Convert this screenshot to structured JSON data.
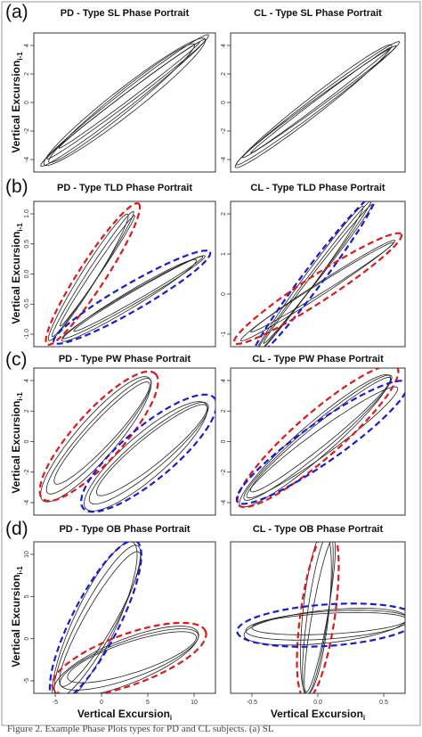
{
  "figure_caption": "Figure 2. Example Phase Plots types for PD and CL subjects. (a) SL",
  "shared_ylabel_main": "Vertical Excursion",
  "shared_ylabel_sub": "i-1",
  "shared_xlabel_main": "Vertical Excursion",
  "shared_xlabel_sub": "i",
  "colors": {
    "trace": "#222222",
    "red_ellipse": "#e01818",
    "blue_ellipse": "#1a1ad8",
    "frame": "#333333"
  },
  "chart_data": [
    {
      "type": "scatter",
      "panel_label": "(a)",
      "title": "PD - Type SL Phase Portrait",
      "xlim": [
        -6,
        6
      ],
      "ylim": [
        -6,
        4.5
      ],
      "yticks": [
        "-4",
        "-2",
        "0",
        "2",
        "4"
      ],
      "xticks": [],
      "traces": [
        {
          "cx": 0,
          "cy": -0.6,
          "rx": 7.5,
          "ry": 0.55,
          "angle": 38
        },
        {
          "cx": 0.1,
          "cy": -0.5,
          "rx": 7.0,
          "ry": 0.35,
          "angle": 37
        },
        {
          "cx": -0.2,
          "cy": -0.8,
          "rx": 6.6,
          "ry": 0.7,
          "angle": 39
        },
        {
          "cx": 0.3,
          "cy": -0.2,
          "rx": 6.2,
          "ry": 0.25,
          "angle": 37
        },
        {
          "cx": 0,
          "cy": -0.7,
          "rx": 7.2,
          "ry": 0.9,
          "angle": 38
        }
      ],
      "highlights": []
    },
    {
      "type": "scatter",
      "panel_label": "",
      "title": "CL - Type SL Phase Portrait",
      "xlim": [
        -6,
        6
      ],
      "ylim": [
        -5,
        4.5
      ],
      "yticks": [
        "-4",
        "-2",
        "0",
        "2",
        "4"
      ],
      "xticks": [],
      "traces": [
        {
          "cx": 0,
          "cy": -0.3,
          "rx": 7.0,
          "ry": 0.45,
          "angle": 37
        },
        {
          "cx": 0.1,
          "cy": -0.2,
          "rx": 6.5,
          "ry": 0.3,
          "angle": 36
        },
        {
          "cx": -0.3,
          "cy": -0.5,
          "rx": 6.8,
          "ry": 0.6,
          "angle": 38
        },
        {
          "cx": 0.2,
          "cy": -0.1,
          "rx": 6.0,
          "ry": 0.2,
          "angle": 37
        }
      ],
      "highlights": []
    },
    {
      "type": "scatter",
      "panel_label": "(b)",
      "title": "PD - Type TLD Phase Portrait",
      "xlim": [
        -1,
        1
      ],
      "ylim": [
        -1.1,
        1.1
      ],
      "yticks": [
        "-1.0",
        "-0.5",
        "0.0",
        "0.5",
        "1.0"
      ],
      "xticks": [],
      "traces": [
        {
          "cx": -0.35,
          "cy": 0.0,
          "rx": 0.95,
          "ry": 0.07,
          "angle": 57
        },
        {
          "cx": -0.3,
          "cy": 0.05,
          "rx": 0.85,
          "ry": 0.05,
          "angle": 56
        },
        {
          "cx": -0.4,
          "cy": -0.05,
          "rx": 0.95,
          "ry": 0.1,
          "angle": 58
        },
        {
          "cx": 0.1,
          "cy": -0.35,
          "rx": 1.05,
          "ry": 0.08,
          "angle": 30
        },
        {
          "cx": 0.15,
          "cy": -0.3,
          "rx": 0.95,
          "ry": 0.06,
          "angle": 30
        },
        {
          "cx": 0.05,
          "cy": -0.4,
          "rx": 1.0,
          "ry": 0.1,
          "angle": 31
        }
      ],
      "highlights": [
        {
          "color": "red",
          "cx": -0.35,
          "cy": 0.0,
          "rx": 1.07,
          "ry": 0.17,
          "angle": 57
        },
        {
          "color": "blue",
          "cx": 0.08,
          "cy": -0.35,
          "rx": 1.15,
          "ry": 0.17,
          "angle": 30
        }
      ]
    },
    {
      "type": "scatter",
      "panel_label": "",
      "title": "CL - Type TLD Phase Portrait",
      "xlim": [
        -1,
        1
      ],
      "ylim": [
        -1.1,
        1.1
      ],
      "yticks": [
        "-1",
        "0",
        "1",
        "2"
      ],
      "xticks": [],
      "traces": [
        {
          "cx": -0.05,
          "cy": -0.05,
          "rx": 1.25,
          "ry": 0.06,
          "angle": 53
        },
        {
          "cx": 0.0,
          "cy": 0.0,
          "rx": 1.15,
          "ry": 0.05,
          "angle": 52
        },
        {
          "cx": -0.1,
          "cy": -0.1,
          "rx": 1.2,
          "ry": 0.08,
          "angle": 54
        },
        {
          "cx": 0.0,
          "cy": -0.25,
          "rx": 1.2,
          "ry": 0.08,
          "angle": 33
        },
        {
          "cx": 0.05,
          "cy": -0.2,
          "rx": 1.1,
          "ry": 0.06,
          "angle": 32
        }
      ],
      "highlights": [
        {
          "color": "blue",
          "cx": -0.05,
          "cy": -0.05,
          "rx": 1.35,
          "ry": 0.13,
          "angle": 53
        },
        {
          "color": "red",
          "cx": 0.0,
          "cy": -0.22,
          "rx": 1.3,
          "ry": 0.17,
          "angle": 33
        }
      ]
    },
    {
      "type": "scatter",
      "panel_label": "(c)",
      "title": "PD - Type PW Phase Portrait",
      "xlim": [
        -6,
        6
      ],
      "ylim": [
        -5,
        4.5
      ],
      "yticks": [
        "-4",
        "-2",
        "0",
        "2",
        "4"
      ],
      "xticks": [],
      "traces": [
        {
          "cx": -1.7,
          "cy": 0.1,
          "rx": 5.0,
          "ry": 1.0,
          "angle": 48
        },
        {
          "cx": -1.5,
          "cy": 0.3,
          "rx": 4.5,
          "ry": 0.8,
          "angle": 47
        },
        {
          "cx": -1.9,
          "cy": -0.1,
          "rx": 5.3,
          "ry": 1.3,
          "angle": 49
        },
        {
          "cx": 1.6,
          "cy": -1.0,
          "rx": 5.0,
          "ry": 1.1,
          "angle": 40
        },
        {
          "cx": 1.8,
          "cy": -0.8,
          "rx": 4.6,
          "ry": 0.9,
          "angle": 39
        },
        {
          "cx": 1.4,
          "cy": -1.2,
          "rx": 5.2,
          "ry": 1.4,
          "angle": 41
        }
      ],
      "highlights": [
        {
          "color": "red",
          "cx": -1.7,
          "cy": 0.1,
          "rx": 5.5,
          "ry": 1.6,
          "angle": 48
        },
        {
          "color": "blue",
          "cx": 1.6,
          "cy": -1.0,
          "rx": 5.6,
          "ry": 1.7,
          "angle": 40
        }
      ]
    },
    {
      "type": "scatter",
      "panel_label": "",
      "title": "CL - Type PW Phase Portrait",
      "xlim": [
        -6,
        6
      ],
      "ylim": [
        -5,
        4.5
      ],
      "yticks": [
        "-4",
        "-2",
        "0",
        "2",
        "4"
      ],
      "xticks": [],
      "traces": [
        {
          "cx": 0.0,
          "cy": 0.0,
          "rx": 6.4,
          "ry": 0.9,
          "angle": 40
        },
        {
          "cx": 0.2,
          "cy": 0.2,
          "rx": 6.0,
          "ry": 0.7,
          "angle": 39
        },
        {
          "cx": -0.2,
          "cy": -0.2,
          "rx": 6.6,
          "ry": 1.1,
          "angle": 41
        },
        {
          "cx": 0.3,
          "cy": -0.3,
          "rx": 6.2,
          "ry": 0.8,
          "angle": 36
        }
      ],
      "highlights": [
        {
          "color": "red",
          "cx": 0.0,
          "cy": 0.1,
          "rx": 7.0,
          "ry": 1.5,
          "angle": 41
        },
        {
          "color": "blue",
          "cx": 0.3,
          "cy": -0.3,
          "rx": 6.9,
          "ry": 1.3,
          "angle": 35
        }
      ]
    },
    {
      "type": "scatter",
      "panel_label": "(d)",
      "title": "PD - Type OB Phase Portrait",
      "xlim": [
        -8,
        12
      ],
      "ylim": [
        -7,
        14
      ],
      "yticks": [
        "-5",
        "0",
        "5",
        "10"
      ],
      "xticks": [
        "-5",
        "0",
        "5",
        "10"
      ],
      "traces": [
        {
          "cx": -1.0,
          "cy": 3.0,
          "rx": 10.5,
          "ry": 2.2,
          "angle": 62
        },
        {
          "cx": -0.7,
          "cy": 3.3,
          "rx": 9.5,
          "ry": 1.8,
          "angle": 60
        },
        {
          "cx": -1.3,
          "cy": 2.7,
          "rx": 11.0,
          "ry": 2.6,
          "angle": 65
        },
        {
          "cx": 2.5,
          "cy": -2.3,
          "rx": 9.0,
          "ry": 2.3,
          "angle": 20
        },
        {
          "cx": 2.8,
          "cy": -2.0,
          "rx": 8.3,
          "ry": 1.9,
          "angle": 18
        },
        {
          "cx": 2.2,
          "cy": -2.6,
          "rx": 9.5,
          "ry": 2.7,
          "angle": 22
        }
      ],
      "highlights": [
        {
          "color": "blue",
          "cx": -1.2,
          "cy": 3.0,
          "rx": 11.0,
          "ry": 2.9,
          "angle": 63
        },
        {
          "color": "red",
          "cx": 2.5,
          "cy": -2.3,
          "rx": 10.0,
          "ry": 3.1,
          "angle": 20
        }
      ]
    },
    {
      "type": "scatter",
      "panel_label": "",
      "title": "CL - Type OB Phase Portrait",
      "xlim": [
        -0.9,
        0.9
      ],
      "ylim": [
        -1.0,
        1.0
      ],
      "yticks": [],
      "xticks": [
        "-0.5",
        "0.0",
        "0.5"
      ],
      "traces": [
        {
          "cx": 0.0,
          "cy": 0.05,
          "rx": 0.95,
          "ry": 0.12,
          "angle": 82
        },
        {
          "cx": 0.02,
          "cy": 0.03,
          "rx": 0.9,
          "ry": 0.09,
          "angle": 80
        },
        {
          "cx": -0.02,
          "cy": 0.07,
          "rx": 0.95,
          "ry": 0.15,
          "angle": 84
        },
        {
          "cx": 0.1,
          "cy": -0.1,
          "rx": 0.95,
          "ry": 0.16,
          "angle": 4
        },
        {
          "cx": 0.12,
          "cy": -0.08,
          "rx": 0.9,
          "ry": 0.12,
          "angle": 3
        },
        {
          "cx": 0.08,
          "cy": -0.12,
          "rx": 0.95,
          "ry": 0.19,
          "angle": 6
        }
      ],
      "highlights": [
        {
          "color": "red",
          "cx": 0.0,
          "cy": 0.05,
          "rx": 1.0,
          "ry": 0.2,
          "angle": 82
        },
        {
          "color": "blue",
          "cx": 0.1,
          "cy": -0.1,
          "rx": 1.05,
          "ry": 0.24,
          "angle": 4
        }
      ]
    }
  ]
}
